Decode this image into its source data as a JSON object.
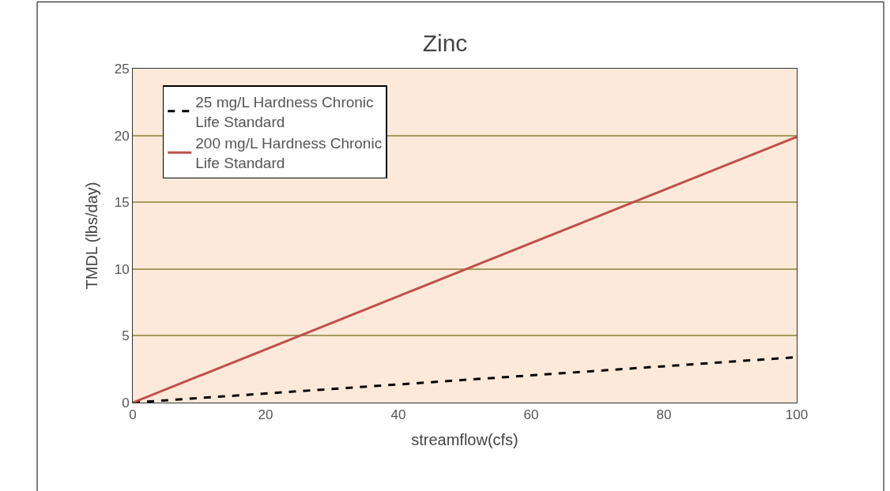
{
  "chart_data": {
    "type": "line",
    "title": "Zinc",
    "xlabel": "streamflow(cfs)",
    "ylabel": "TMDL (lbs/day)",
    "x": [
      0,
      100
    ],
    "series": [
      {
        "name": "25 mg/L Hardness Chronic Life Standard",
        "color": "#000000",
        "values": [
          0,
          3.4
        ],
        "line_style": "dashed"
      },
      {
        "name": "200 mg/L Hardness Chronic Life Standard",
        "color": "#c0504d",
        "values": [
          0,
          19.9
        ],
        "line_style": "solid"
      }
    ],
    "xlim": [
      0,
      100
    ],
    "xticks": [
      0,
      20,
      40,
      60,
      80,
      100
    ],
    "ylim": [
      0,
      25
    ],
    "yticks": [
      0,
      5,
      10,
      15,
      20,
      25
    ],
    "grid": "y",
    "legend": "top left",
    "marker": "none"
  }
}
